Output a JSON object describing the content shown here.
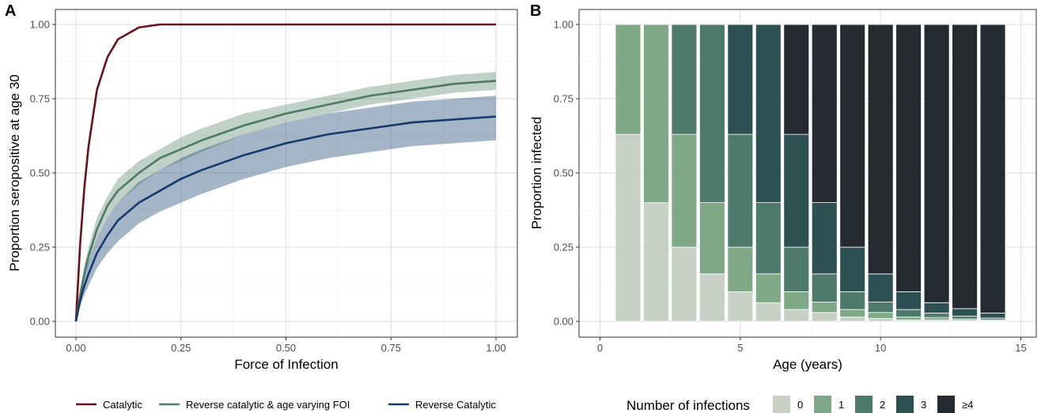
{
  "chart_data": [
    {
      "panel": "A",
      "type": "line",
      "xlabel": "Force of Infection",
      "ylabel": "Proportion seropositive at age 30",
      "xlim": [
        0,
        1
      ],
      "ylim": [
        0,
        1
      ],
      "x_ticks": [
        "0.00",
        "0.25",
        "0.50",
        "0.75",
        "1.00"
      ],
      "y_ticks": [
        "0.00",
        "0.25",
        "0.50",
        "0.75",
        "1.00"
      ],
      "grid": true,
      "legend_position": "bottom",
      "x": [
        0,
        0.01,
        0.02,
        0.03,
        0.05,
        0.075,
        0.1,
        0.15,
        0.2,
        0.25,
        0.3,
        0.4,
        0.5,
        0.6,
        0.7,
        0.8,
        0.9,
        1.0
      ],
      "series": [
        {
          "name": "Catalytic",
          "color": "#6b0f1a",
          "values": [
            0,
            0.26,
            0.45,
            0.59,
            0.78,
            0.89,
            0.95,
            0.99,
            1.0,
            1.0,
            1.0,
            1.0,
            1.0,
            1.0,
            1.0,
            1.0,
            1.0,
            1.0
          ]
        },
        {
          "name": "Reverse catalytic & age varying FOI",
          "color": "#4d7a66",
          "values": [
            0,
            0.09,
            0.16,
            0.22,
            0.31,
            0.39,
            0.44,
            0.5,
            0.55,
            0.58,
            0.61,
            0.66,
            0.7,
            0.73,
            0.76,
            0.78,
            0.8,
            0.81
          ],
          "lower": [
            0,
            0.07,
            0.14,
            0.19,
            0.28,
            0.35,
            0.4,
            0.46,
            0.51,
            0.54,
            0.57,
            0.63,
            0.67,
            0.7,
            0.73,
            0.75,
            0.77,
            0.78
          ],
          "upper": [
            0,
            0.11,
            0.19,
            0.25,
            0.35,
            0.42,
            0.48,
            0.54,
            0.58,
            0.62,
            0.65,
            0.7,
            0.73,
            0.76,
            0.79,
            0.81,
            0.83,
            0.84
          ]
        },
        {
          "name": "Reverse Catalytic",
          "color": "#163a6b",
          "values": [
            0,
            0.07,
            0.12,
            0.16,
            0.23,
            0.29,
            0.34,
            0.4,
            0.44,
            0.48,
            0.51,
            0.56,
            0.6,
            0.63,
            0.65,
            0.67,
            0.68,
            0.69
          ],
          "lower": [
            0,
            0.05,
            0.09,
            0.12,
            0.18,
            0.23,
            0.27,
            0.33,
            0.37,
            0.4,
            0.43,
            0.48,
            0.52,
            0.55,
            0.57,
            0.59,
            0.6,
            0.61
          ],
          "upper": [
            0,
            0.09,
            0.15,
            0.2,
            0.28,
            0.35,
            0.4,
            0.47,
            0.51,
            0.55,
            0.58,
            0.63,
            0.67,
            0.7,
            0.72,
            0.74,
            0.75,
            0.76
          ]
        }
      ]
    },
    {
      "panel": "B",
      "type": "bar",
      "stacked": true,
      "xlabel": "Age (years)",
      "ylabel": "Proportion infected",
      "xlim": [
        -0.5,
        15.5
      ],
      "ylim": [
        0,
        1
      ],
      "x_ticks": [
        "0",
        "5",
        "10",
        "15"
      ],
      "y_ticks": [
        "0.00",
        "0.25",
        "0.50",
        "0.75",
        "1.00"
      ],
      "grid": true,
      "legend_position": "bottom",
      "legend_title": "Number of infections",
      "categories": [
        1,
        2,
        3,
        4,
        5,
        6,
        7,
        8,
        9,
        10,
        11,
        12,
        13,
        14
      ],
      "series": [
        {
          "name": "0",
          "color": "#c8d0c6",
          "values": [
            0.63,
            0.4,
            0.25,
            0.16,
            0.1,
            0.063,
            0.04,
            0.03,
            0.015,
            0.01,
            0.005,
            0.005,
            0.003,
            0.002
          ]
        },
        {
          "name": "1",
          "color": "#7fa886",
          "values": [
            0.37,
            0.6,
            0.38,
            0.24,
            0.15,
            0.097,
            0.06,
            0.035,
            0.025,
            0.02,
            0.01,
            0.008,
            0.005,
            0.003
          ]
        },
        {
          "name": "2",
          "color": "#4e7a6c",
          "values": [
            0,
            0,
            0.37,
            0.6,
            0.38,
            0.24,
            0.15,
            0.095,
            0.06,
            0.035,
            0.025,
            0.015,
            0.01,
            0.006
          ]
        },
        {
          "name": "3",
          "color": "#2d5052",
          "values": [
            0,
            0,
            0,
            0,
            0.37,
            0.6,
            0.38,
            0.24,
            0.15,
            0.095,
            0.06,
            0.035,
            0.025,
            0.017
          ]
        },
        {
          "name": "≥4",
          "color": "#252a31",
          "values": [
            0,
            0,
            0,
            0,
            0,
            0,
            0.37,
            0.6,
            0.75,
            0.84,
            0.9,
            0.937,
            0.957,
            0.972
          ]
        }
      ]
    }
  ],
  "panel_tags": [
    "A",
    "B"
  ]
}
